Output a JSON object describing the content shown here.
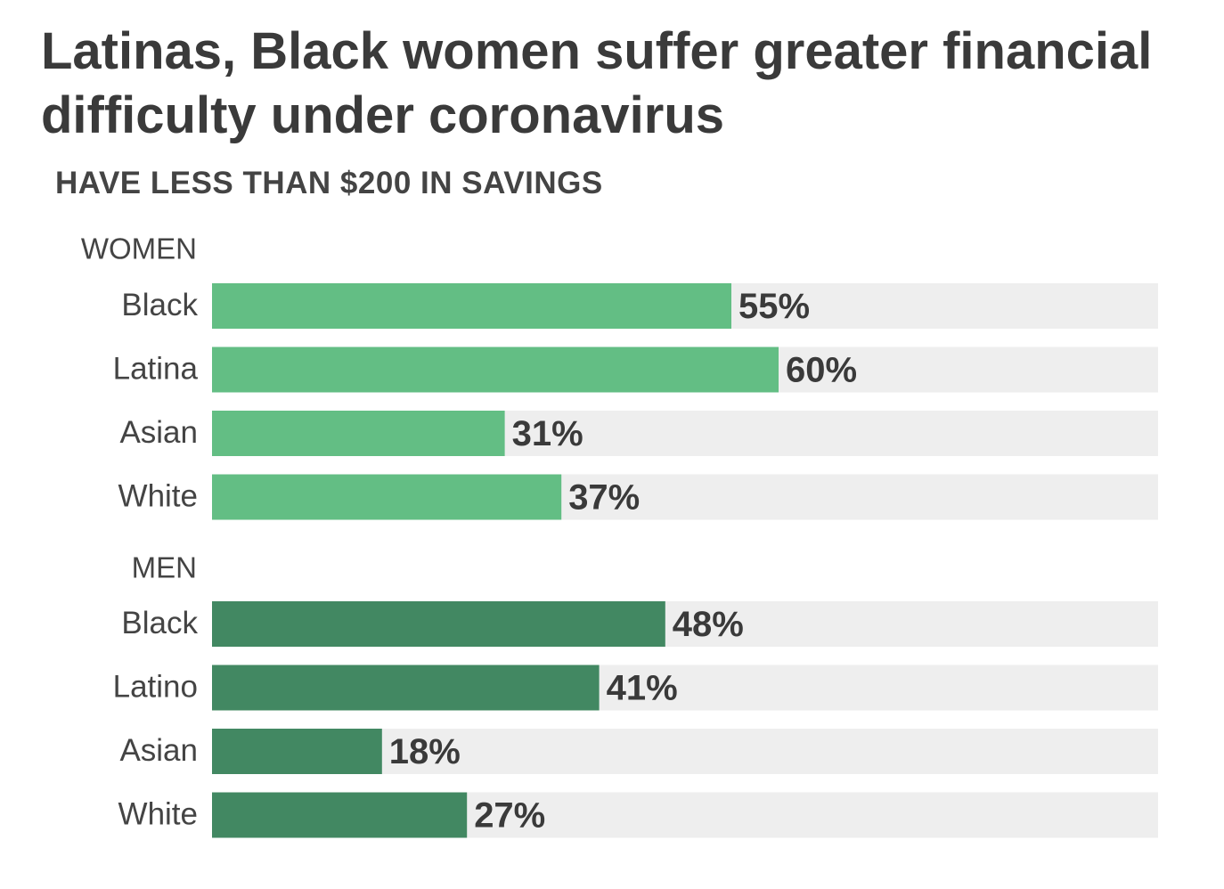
{
  "title": "Latinas, Black women suffer greater financial difficulty under coronavirus",
  "subtitle": "HAVE LESS THAN $200 IN SAVINGS",
  "chart_data": {
    "type": "bar",
    "orientation": "horizontal",
    "title": "Latinas, Black women suffer greater financial difficulty under coronavirus",
    "subtitle": "HAVE LESS THAN $200 IN SAVINGS",
    "xlim": [
      0,
      100
    ],
    "unit": "%",
    "grid": false,
    "legend": "none",
    "colors": {
      "women": "#63be84",
      "men": "#428862",
      "track": "#eeeeee"
    },
    "groups": [
      {
        "name": "WOMEN",
        "categories": [
          "Black",
          "Latina",
          "Asian",
          "White"
        ],
        "values": [
          55,
          60,
          31,
          37
        ],
        "labels": [
          "55%",
          "60%",
          "31%",
          "37%"
        ]
      },
      {
        "name": "MEN",
        "categories": [
          "Black",
          "Latino",
          "Asian",
          "White"
        ],
        "values": [
          48,
          41,
          18,
          27
        ],
        "labels": [
          "48%",
          "41%",
          "18%",
          "27%"
        ]
      }
    ]
  }
}
